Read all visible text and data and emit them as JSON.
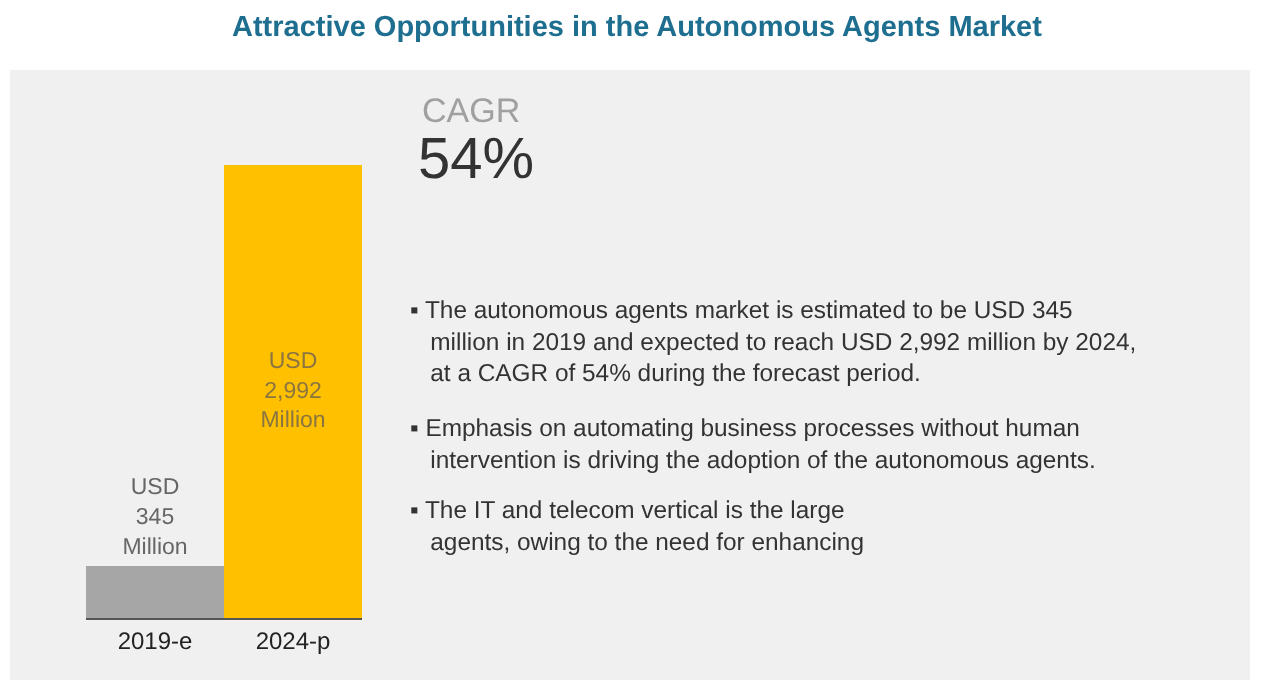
{
  "chart_data": {
    "type": "bar",
    "title": "Attractive Opportunities in the Autonomous Agents Market",
    "categories": [
      "2019-e",
      "2024-p"
    ],
    "values": [
      345,
      2992
    ],
    "colors": [
      "#a6a6a6",
      "#ffc000"
    ],
    "value_labels": [
      "USD\n345\nMillion",
      "USD\n2,992\nMillion"
    ],
    "ylim": [
      0,
      3000
    ],
    "tick_labels": "x",
    "annotations": [
      "CAGR",
      "54%",
      "▪ The autonomous agents market is estimated to be USD 345\n   million in 2019 and expected to reach USD 2,992 million by 2024,\n   at a CAGR of 54% during the forecast period.",
      "▪ Emphasis on automating business processes without human\n   intervention is driving the adoption of the autonomous agents.",
      "▪ The IT and telecom vertical is the large\n   agents, owing to the need for enhancing"
    ]
  }
}
